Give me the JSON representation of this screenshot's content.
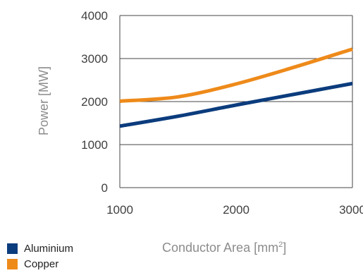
{
  "chart_data": {
    "type": "line",
    "x": [
      1000,
      1500,
      2000,
      2500,
      3000
    ],
    "series": [
      {
        "name": "Aluminium",
        "color": "#0b3c7d",
        "values": [
          1430,
          1660,
          1920,
          2170,
          2420
        ]
      },
      {
        "name": "Copper",
        "color": "#ee8a1a",
        "values": [
          2010,
          2110,
          2410,
          2800,
          3220
        ]
      }
    ],
    "xlabel": "Conductor Area [mm",
    "xlabel_sup": "2",
    "xlabel_suffix": "]",
    "ylabel": "Power [MW]",
    "xlim": [
      1000,
      3000
    ],
    "ylim": [
      0,
      4000
    ],
    "xticks": [
      "1000",
      "2000",
      "3000"
    ],
    "yticks": [
      "0",
      "1000",
      "2000",
      "3000",
      "4000"
    ],
    "grid": "horizontal",
    "legend_position": "bottom-left"
  }
}
